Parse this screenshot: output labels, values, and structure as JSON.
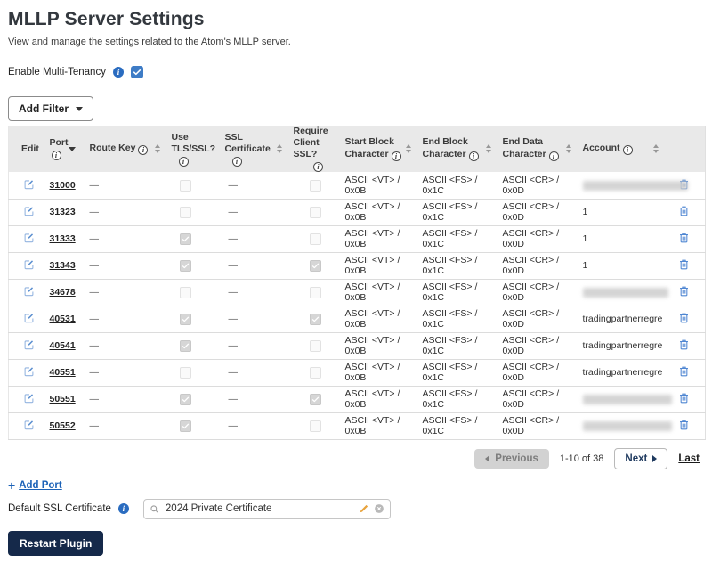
{
  "page": {
    "title": "MLLP Server Settings",
    "subtitle": "View and manage the settings related to the Atom's MLLP server."
  },
  "multi_tenancy": {
    "label": "Enable Multi-Tenancy",
    "checked": true
  },
  "filter": {
    "add_filter_label": "Add Filter"
  },
  "table": {
    "columns": [
      {
        "id": "edit",
        "label": "Edit",
        "info": false,
        "sort": "none"
      },
      {
        "id": "port",
        "label": "Port",
        "info": true,
        "info_position": "below",
        "sort": "desc"
      },
      {
        "id": "route_key",
        "label": "Route Key",
        "info": true,
        "info_position": "inline",
        "sort": "both"
      },
      {
        "id": "use_tls",
        "label": "Use TLS/SSL?",
        "info": true,
        "info_position": "below",
        "sort": "none"
      },
      {
        "id": "ssl_certificate",
        "label": "SSL Certificate",
        "info": true,
        "info_position": "below",
        "sort": "both"
      },
      {
        "id": "require_client_ssl",
        "label": "Require Client SSL?",
        "info": true,
        "info_position": "below",
        "sort": "none"
      },
      {
        "id": "start_block",
        "label": "Start Block Character",
        "info": true,
        "info_position": "inline",
        "sort": "both"
      },
      {
        "id": "end_block",
        "label": "End Block Character",
        "info": true,
        "info_position": "inline",
        "sort": "both"
      },
      {
        "id": "end_data",
        "label": "End Data Character",
        "info": true,
        "info_position": "inline",
        "sort": "both"
      },
      {
        "id": "account",
        "label": "Account",
        "info": true,
        "info_position": "inline",
        "sort": "both"
      },
      {
        "id": "delete",
        "label": "",
        "info": false,
        "sort": "none"
      }
    ],
    "rows": [
      {
        "port": "31000",
        "route_key": "—",
        "use_tls": false,
        "ssl_certificate": "—",
        "require_client_ssl": false,
        "start_block": "ASCII <VT> / 0x0B",
        "end_block": "ASCII <FS> / 0x1C",
        "end_data": "ASCII <CR> / 0x0D",
        "account": "",
        "account_redacted": true
      },
      {
        "port": "31323",
        "route_key": "—",
        "use_tls": false,
        "ssl_certificate": "—",
        "require_client_ssl": false,
        "start_block": "ASCII <VT> / 0x0B",
        "end_block": "ASCII <FS> / 0x1C",
        "end_data": "ASCII <CR> / 0x0D",
        "account": "1",
        "account_redacted": false
      },
      {
        "port": "31333",
        "route_key": "—",
        "use_tls": true,
        "ssl_certificate": "—",
        "require_client_ssl": false,
        "start_block": "ASCII <VT> / 0x0B",
        "end_block": "ASCII <FS> / 0x1C",
        "end_data": "ASCII <CR> / 0x0D",
        "account": "1",
        "account_redacted": false
      },
      {
        "port": "31343",
        "route_key": "—",
        "use_tls": true,
        "ssl_certificate": "—",
        "require_client_ssl": true,
        "start_block": "ASCII <VT> / 0x0B",
        "end_block": "ASCII <FS> / 0x1C",
        "end_data": "ASCII <CR> / 0x0D",
        "account": "1",
        "account_redacted": false
      },
      {
        "port": "34678",
        "route_key": "—",
        "use_tls": false,
        "ssl_certificate": "—",
        "require_client_ssl": false,
        "start_block": "ASCII <VT> / 0x0B",
        "end_block": "ASCII <FS> / 0x1C",
        "end_data": "ASCII <CR> / 0x0D",
        "account": "",
        "account_redacted": true
      },
      {
        "port": "40531",
        "route_key": "—",
        "use_tls": true,
        "ssl_certificate": "—",
        "require_client_ssl": true,
        "start_block": "ASCII <VT> / 0x0B",
        "end_block": "ASCII <FS> / 0x1C",
        "end_data": "ASCII <CR> / 0x0D",
        "account": "tradingpartnerregre",
        "account_redacted": false
      },
      {
        "port": "40541",
        "route_key": "—",
        "use_tls": true,
        "ssl_certificate": "—",
        "require_client_ssl": false,
        "start_block": "ASCII <VT> / 0x0B",
        "end_block": "ASCII <FS> / 0x1C",
        "end_data": "ASCII <CR> / 0x0D",
        "account": "tradingpartnerregre",
        "account_redacted": false
      },
      {
        "port": "40551",
        "route_key": "—",
        "use_tls": false,
        "ssl_certificate": "—",
        "require_client_ssl": false,
        "start_block": "ASCII <VT> / 0x0B",
        "end_block": "ASCII <FS> / 0x1C",
        "end_data": "ASCII <CR> / 0x0D",
        "account": "tradingpartnerregre",
        "account_redacted": false
      },
      {
        "port": "50551",
        "route_key": "—",
        "use_tls": true,
        "ssl_certificate": "—",
        "require_client_ssl": true,
        "start_block": "ASCII <VT> / 0x0B",
        "end_block": "ASCII <FS> / 0x1C",
        "end_data": "ASCII <CR> / 0x0D",
        "account": "",
        "account_redacted": true
      },
      {
        "port": "50552",
        "route_key": "—",
        "use_tls": true,
        "ssl_certificate": "—",
        "require_client_ssl": false,
        "start_block": "ASCII <VT> / 0x0B",
        "end_block": "ASCII <FS> / 0x1C",
        "end_data": "ASCII <CR> / 0x0D",
        "account": "",
        "account_redacted": true
      }
    ]
  },
  "pagination": {
    "previous_label": "Previous",
    "range_label": "1-10 of 38",
    "next_label": "Next",
    "last_label": "Last"
  },
  "footer": {
    "add_port_label": "Add Port",
    "default_ssl_label": "Default SSL Certificate",
    "default_ssl_value": "2024 Private Certificate",
    "restart_label": "Restart Plugin"
  },
  "icons": {
    "edit": "pencil-square",
    "delete": "trash",
    "info_filled": "info-circle-filled",
    "info_outline": "info-circle-outline",
    "sort": "up-down-triangles",
    "sort_active": "down-triangle",
    "search": "magnifier",
    "edit_value": "pencil",
    "clear": "circle-x"
  },
  "colors": {
    "accent_blue": "#2a6cc0",
    "link_blue": "#1c62b7",
    "icon_blue": "#4f86d2",
    "dark_navy": "#15294a",
    "header_gray": "#e9e9e9",
    "pencil_orange": "#e8a33d"
  }
}
